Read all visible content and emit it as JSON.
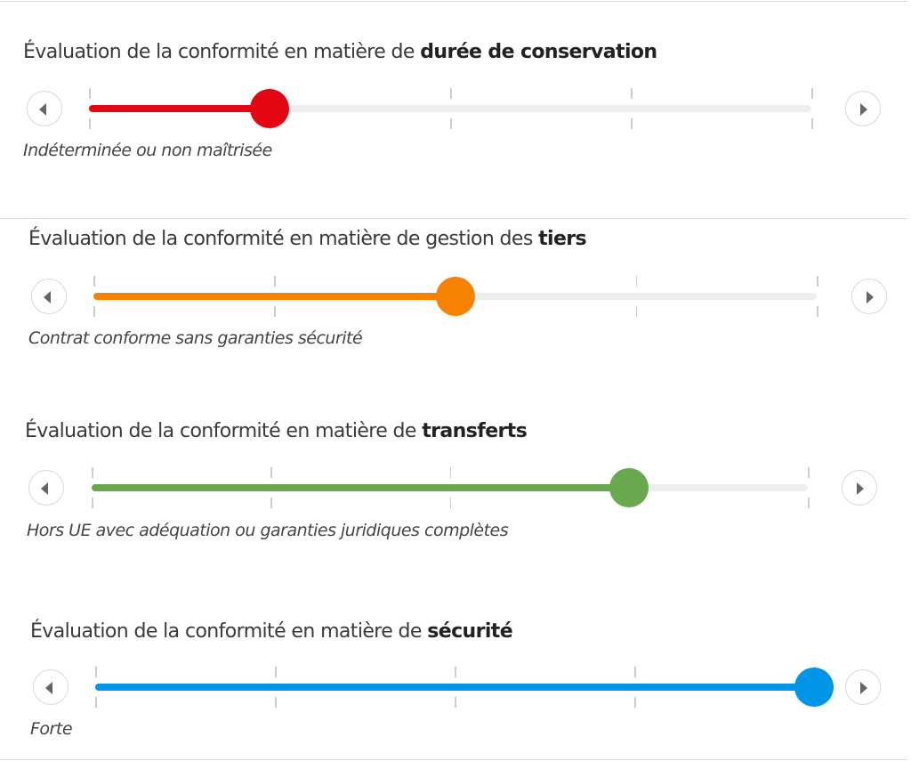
{
  "sliders": [
    {
      "title_prefix": "Évaluation de la conformité en matière de ",
      "title_bold": "durée de conservation",
      "value": 1,
      "max": 4,
      "value_label": "Indéterminée ou non maîtrisée",
      "color": "#e30613"
    },
    {
      "title_prefix": "Évaluation de la conformité en matière de gestion des ",
      "title_bold": "tiers",
      "value": 2,
      "max": 4,
      "value_label": "Contrat conforme sans garanties sécurité",
      "color": "#f58200"
    },
    {
      "title_prefix": "Évaluation de la conformité en matière de ",
      "title_bold": "transferts",
      "value": 3,
      "max": 4,
      "value_label": "Hors UE avec adéquation ou garanties juridiques complètes",
      "color": "#6aa84f"
    },
    {
      "title_prefix": "Évaluation de la conformité en matière de ",
      "title_bold": "sécurité",
      "value": 4,
      "max": 4,
      "value_label": "Forte",
      "color": "#0095e6"
    }
  ],
  "icons": {
    "prev": "caret-left-icon",
    "next": "caret-right-icon"
  }
}
